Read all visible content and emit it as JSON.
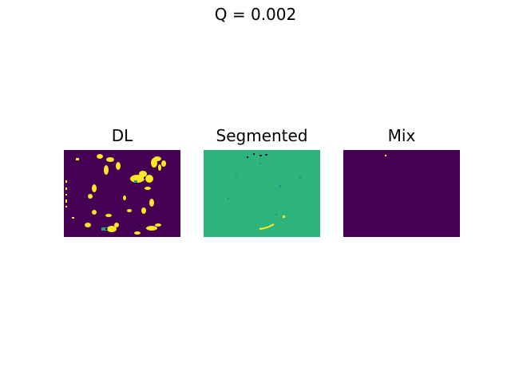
{
  "figure": {
    "suptitle": "Q = 0.002",
    "panels": [
      {
        "title": "DL",
        "background": "#440154",
        "foreground": "#fde725",
        "accent": "#2a9d8f"
      },
      {
        "title": "Segmented",
        "background": "#2db37c",
        "foreground": "#fde725",
        "accent": "#21908d"
      },
      {
        "title": "Mix",
        "background": "#440154",
        "foreground": "#fde725",
        "accent": "#440154"
      }
    ]
  }
}
